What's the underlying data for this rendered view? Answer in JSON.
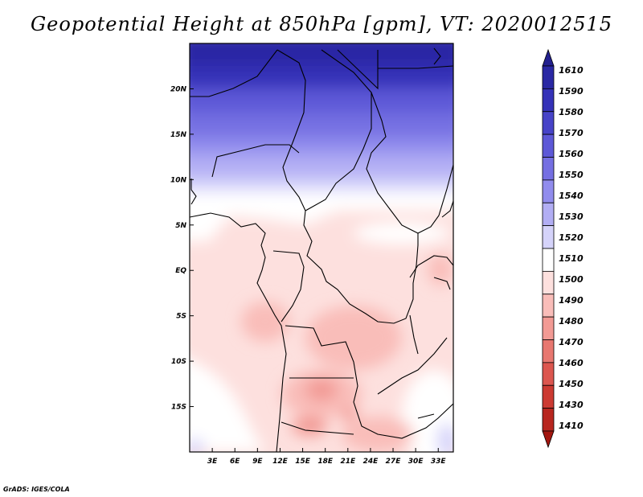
{
  "title": "Geopotential Height at 850hPa [gpm], VT: 2020012515",
  "credit": "GrADS: IGES/COLA",
  "map": {
    "lon_range": [
      0,
      35
    ],
    "lat_range": [
      -20,
      25
    ],
    "lat_ticks": [
      {
        "value": 20,
        "label": "20N"
      },
      {
        "value": 15,
        "label": "15N"
      },
      {
        "value": 10,
        "label": "10N"
      },
      {
        "value": 5,
        "label": "5N"
      },
      {
        "value": 0,
        "label": "EQ"
      },
      {
        "value": -5,
        "label": "5S"
      },
      {
        "value": -10,
        "label": "10S"
      },
      {
        "value": -15,
        "label": "15S"
      }
    ],
    "lon_ticks": [
      {
        "value": 3,
        "label": "3E"
      },
      {
        "value": 6,
        "label": "6E"
      },
      {
        "value": 9,
        "label": "9E"
      },
      {
        "value": 12,
        "label": "12E"
      },
      {
        "value": 15,
        "label": "15E"
      },
      {
        "value": 18,
        "label": "18E"
      },
      {
        "value": 21,
        "label": "21E"
      },
      {
        "value": 24,
        "label": "24E"
      },
      {
        "value": 27,
        "label": "27E"
      },
      {
        "value": 30,
        "label": "30E"
      },
      {
        "value": 33,
        "label": "33E"
      }
    ]
  },
  "colorbar": {
    "levels": [
      {
        "label": "1610",
        "color": "#23208f"
      },
      {
        "label": "1590",
        "color": "#2a28a4"
      },
      {
        "label": "1580",
        "color": "#3532b8"
      },
      {
        "label": "1570",
        "color": "#4743c8"
      },
      {
        "label": "1560",
        "color": "#5d58d7"
      },
      {
        "label": "1550",
        "color": "#756fe2"
      },
      {
        "label": "1540",
        "color": "#918ced"
      },
      {
        "label": "1530",
        "color": "#b2aef4"
      },
      {
        "label": "1520",
        "color": "#d5d3fa"
      },
      {
        "label": "1510",
        "color": "#ffffff"
      },
      {
        "label": "1500",
        "color": "#fde0de"
      },
      {
        "label": "1490",
        "color": "#f9bdb9"
      },
      {
        "label": "1480",
        "color": "#f29a94"
      },
      {
        "label": "1470",
        "color": "#e87770"
      },
      {
        "label": "1460",
        "color": "#dc564f"
      },
      {
        "label": "1450",
        "color": "#cc3a32"
      },
      {
        "label": "1430",
        "color": "#b8261f"
      },
      {
        "label": "1410",
        "color": "#a3160f"
      }
    ]
  }
}
